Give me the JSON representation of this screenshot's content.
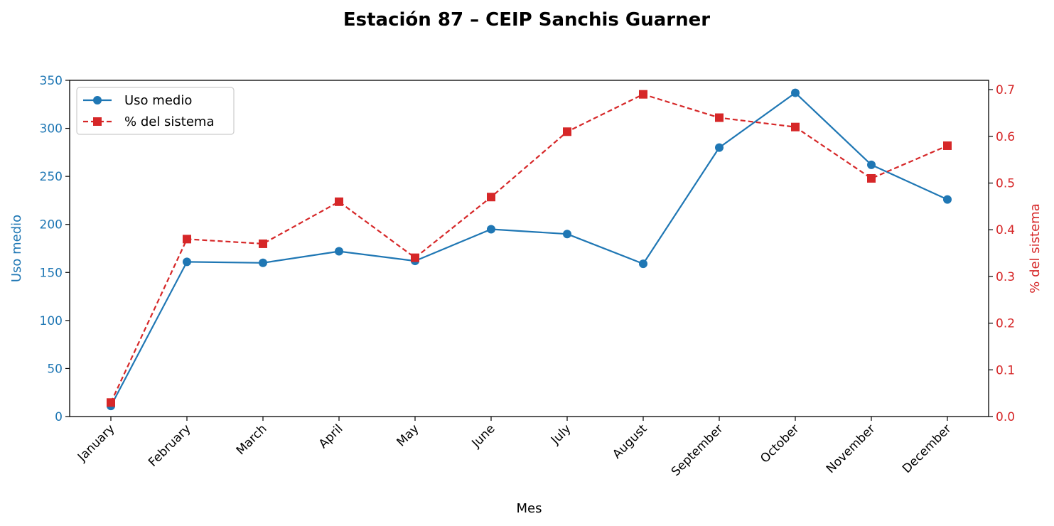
{
  "chart_data": {
    "type": "line",
    "title": "Estación 87 – CEIP Sanchis Guarner",
    "xlabel": "Mes",
    "ylabel_left": "Uso medio",
    "ylabel_right": "% del sistema",
    "categories": [
      "January",
      "February",
      "March",
      "April",
      "May",
      "June",
      "July",
      "August",
      "September",
      "October",
      "November",
      "December"
    ],
    "ylim_left": [
      0,
      350
    ],
    "ylim_right": [
      0,
      0.72
    ],
    "yticks_left": [
      0,
      50,
      100,
      150,
      200,
      250,
      300,
      350
    ],
    "yticks_right": [
      0.0,
      0.1,
      0.2,
      0.3,
      0.4,
      0.5,
      0.6,
      0.7
    ],
    "grid": false,
    "legend_position": "top-left",
    "series": [
      {
        "name": "Uso medio",
        "axis": "left",
        "color": "#1f77b4",
        "marker": "circle",
        "linestyle": "solid",
        "values": [
          11,
          161,
          160,
          172,
          162,
          195,
          190,
          159,
          280,
          337,
          262,
          226
        ]
      },
      {
        "name": "% del sistema",
        "axis": "right",
        "color": "#d62728",
        "marker": "square",
        "linestyle": "dashed",
        "values": [
          0.03,
          0.38,
          0.37,
          0.46,
          0.34,
          0.47,
          0.61,
          0.69,
          0.64,
          0.62,
          0.51,
          0.58
        ]
      }
    ]
  }
}
